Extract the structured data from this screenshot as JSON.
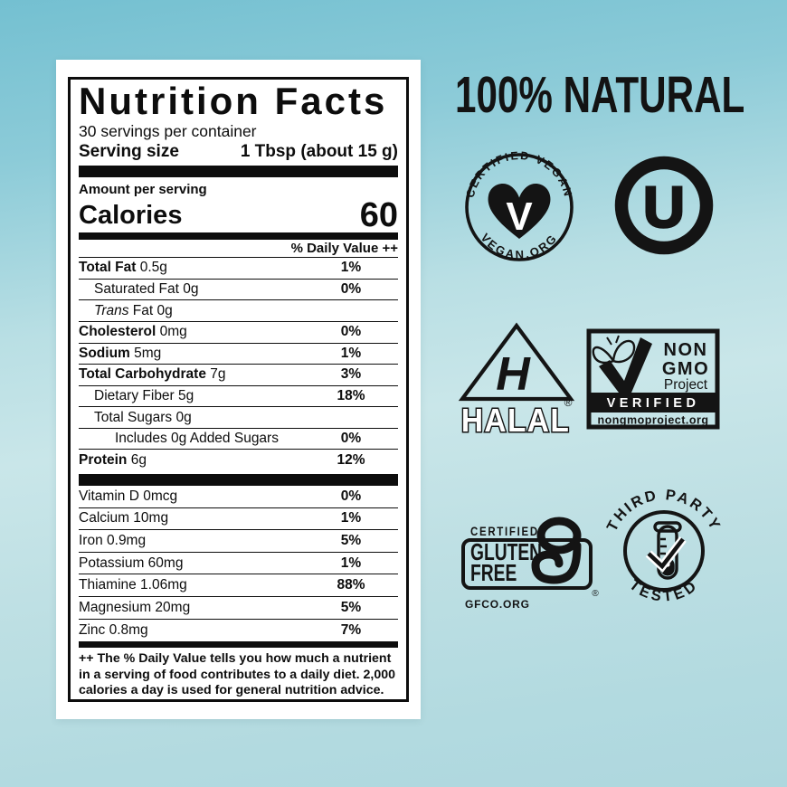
{
  "background": {
    "top_color": "#74c0d1",
    "mid_color": "#c9e6e9",
    "bottom_color": "#aed7de",
    "ink": "#0d0d0d",
    "card": "#ffffff"
  },
  "headline": {
    "text": "100% NATURAL"
  },
  "nutrition_label": {
    "title": "Nutrition Facts",
    "servings_per_container": "30 servings per container",
    "serving_size_label": "Serving size",
    "serving_size_value": "1 Tbsp (about 15 g)",
    "amount_per_serving": "Amount per serving",
    "calories_label": "Calories",
    "calories_value": "60",
    "daily_value_header": "% Daily Value ++",
    "rows": [
      {
        "bold": "Total Fat",
        "text": " 0.5g",
        "dv": "1%",
        "indent": 0
      },
      {
        "text": "Saturated Fat 0g",
        "dv": "0%",
        "indent": 1
      },
      {
        "italic": "Trans",
        "text": " Fat 0g",
        "dv": "",
        "indent": 1
      },
      {
        "bold": "Cholesterol",
        "text": " 0mg",
        "dv": "0%",
        "indent": 0
      },
      {
        "bold": "Sodium",
        "text": " 5mg",
        "dv": "1%",
        "indent": 0
      },
      {
        "bold": "Total Carbohydrate",
        "text": " 7g",
        "dv": "3%",
        "indent": 0
      },
      {
        "text": "Dietary Fiber 5g",
        "dv": "18%",
        "indent": 1
      },
      {
        "text": "Total Sugars 0g",
        "dv": "",
        "indent": 1
      },
      {
        "text": "Includes 0g Added Sugars",
        "dv": "0%",
        "indent": 2
      },
      {
        "bold": "Protein",
        "text": " 6g",
        "dv": "12%",
        "indent": 0
      }
    ],
    "vitamins": [
      {
        "text": "Vitamin D 0mcg",
        "dv": "0%",
        "indent": 0
      },
      {
        "text": "Calcium 10mg",
        "dv": "1%",
        "indent": 0
      },
      {
        "text": "Iron 0.9mg",
        "dv": "5%",
        "indent": 0
      },
      {
        "text": "Potassium 60mg",
        "dv": "1%",
        "indent": 0
      },
      {
        "text": "Thiamine 1.06mg",
        "dv": "88%",
        "indent": 0
      },
      {
        "text": "Magnesium 20mg",
        "dv": "5%",
        "indent": 0
      },
      {
        "text": "Zinc 0.8mg",
        "dv": "7%",
        "indent": 0
      }
    ],
    "footnote": "++ The % Daily Value tells you how much a nutrient in a serving of food contributes to a daily diet. 2,000 calories a day is used for general nutrition advice."
  },
  "badges": {
    "certified_vegan": {
      "arc_top": "CERTIFIED VEGAN",
      "arc_bottom": "VEGAN.ORG",
      "heart_letter": "V"
    },
    "kosher": {
      "letter": "U"
    },
    "halal": {
      "monogram": "H",
      "label": "HALAL",
      "registered": "®"
    },
    "non_gmo": {
      "word1": "NON",
      "word2": "GMO",
      "word3": "Project",
      "banner": "VERIFIED",
      "website": "nongmoproject.org"
    },
    "gluten_free": {
      "certified": "CERTIFIED",
      "word1": "GLUTEN",
      "word2": "FREE",
      "registered": "®",
      "website": "GFCO.ORG"
    },
    "third_party": {
      "arc_top": "THIRD PARTY",
      "arc_bottom": "TESTED"
    }
  }
}
